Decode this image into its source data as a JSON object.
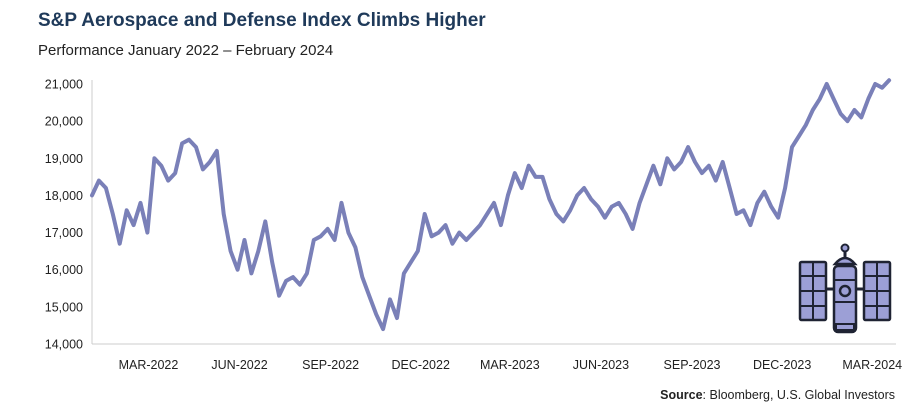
{
  "title": "S&P Aerospace and Defense Index Climbs Higher",
  "subtitle": "Performance January 2022 – February 2024",
  "source_label": "Source",
  "source_text": ": Bloomberg, U.S. Global Investors",
  "icon": "satellite-icon",
  "colors": {
    "line": "#7a80b8",
    "title": "#1f3a5a",
    "icon_fill": "#9c9fd6",
    "icon_stroke": "#1f2333"
  },
  "chart_data": {
    "type": "line",
    "title": "S&P Aerospace and Defense Index Climbs Higher",
    "subtitle": "Performance January 2022 – February 2024",
    "xlabel": "",
    "ylabel": "",
    "ylim": [
      14000,
      21000
    ],
    "yticks": [
      "14,000",
      "15,000",
      "16,000",
      "17,000",
      "18,000",
      "19,000",
      "20,000",
      "21,000"
    ],
    "ytick_values": [
      14000,
      15000,
      16000,
      17000,
      18000,
      19000,
      20000,
      21000
    ],
    "xticks": [
      {
        "label": "MAR-2022",
        "date": "2022-03-01"
      },
      {
        "label": "JUN-2022",
        "date": "2022-06-01"
      },
      {
        "label": "SEP-2022",
        "date": "2022-09-01"
      },
      {
        "label": "DEC-2022",
        "date": "2022-12-01"
      },
      {
        "label": "MAR-2023",
        "date": "2023-03-01"
      },
      {
        "label": "JUN-2023",
        "date": "2023-06-01"
      },
      {
        "label": "SEP-2023",
        "date": "2023-09-01"
      },
      {
        "label": "DEC-2023",
        "date": "2023-12-01"
      },
      {
        "label": "MAR-2024",
        "date": "2024-03-01"
      }
    ],
    "xlim": [
      "2022-01-03",
      "2024-03-25"
    ],
    "grid": false,
    "series": [
      {
        "name": "",
        "points": [
          [
            "2022-01-03",
            18000
          ],
          [
            "2022-01-10",
            18400
          ],
          [
            "2022-01-17",
            18200
          ],
          [
            "2022-01-24",
            17500
          ],
          [
            "2022-01-31",
            16700
          ],
          [
            "2022-02-07",
            17600
          ],
          [
            "2022-02-14",
            17200
          ],
          [
            "2022-02-21",
            17800
          ],
          [
            "2022-02-28",
            17000
          ],
          [
            "2022-03-07",
            19000
          ],
          [
            "2022-03-14",
            18800
          ],
          [
            "2022-03-21",
            18400
          ],
          [
            "2022-03-28",
            18600
          ],
          [
            "2022-04-04",
            19400
          ],
          [
            "2022-04-11",
            19500
          ],
          [
            "2022-04-18",
            19300
          ],
          [
            "2022-04-25",
            18700
          ],
          [
            "2022-05-02",
            18900
          ],
          [
            "2022-05-09",
            19200
          ],
          [
            "2022-05-16",
            17500
          ],
          [
            "2022-05-23",
            16500
          ],
          [
            "2022-05-30",
            16000
          ],
          [
            "2022-06-06",
            16800
          ],
          [
            "2022-06-13",
            15900
          ],
          [
            "2022-06-20",
            16500
          ],
          [
            "2022-06-27",
            17300
          ],
          [
            "2022-07-04",
            16200
          ],
          [
            "2022-07-11",
            15300
          ],
          [
            "2022-07-18",
            15700
          ],
          [
            "2022-07-25",
            15800
          ],
          [
            "2022-08-01",
            15600
          ],
          [
            "2022-08-08",
            15900
          ],
          [
            "2022-08-15",
            16800
          ],
          [
            "2022-08-22",
            16900
          ],
          [
            "2022-08-29",
            17100
          ],
          [
            "2022-09-05",
            16800
          ],
          [
            "2022-09-12",
            17800
          ],
          [
            "2022-09-19",
            17000
          ],
          [
            "2022-09-26",
            16600
          ],
          [
            "2022-10-03",
            15800
          ],
          [
            "2022-10-10",
            15300
          ],
          [
            "2022-10-17",
            14800
          ],
          [
            "2022-10-24",
            14400
          ],
          [
            "2022-10-31",
            15200
          ],
          [
            "2022-11-07",
            14700
          ],
          [
            "2022-11-14",
            15900
          ],
          [
            "2022-11-21",
            16200
          ],
          [
            "2022-11-28",
            16500
          ],
          [
            "2022-12-05",
            17500
          ],
          [
            "2022-12-12",
            16900
          ],
          [
            "2022-12-19",
            17000
          ],
          [
            "2022-12-26",
            17200
          ],
          [
            "2023-01-02",
            16700
          ],
          [
            "2023-01-09",
            17000
          ],
          [
            "2023-01-16",
            16800
          ],
          [
            "2023-01-23",
            17000
          ],
          [
            "2023-01-30",
            17200
          ],
          [
            "2023-02-06",
            17500
          ],
          [
            "2023-02-13",
            17800
          ],
          [
            "2023-02-20",
            17200
          ],
          [
            "2023-02-27",
            18000
          ],
          [
            "2023-03-06",
            18600
          ],
          [
            "2023-03-13",
            18200
          ],
          [
            "2023-03-20",
            18800
          ],
          [
            "2023-03-27",
            18500
          ],
          [
            "2023-04-03",
            18500
          ],
          [
            "2023-04-10",
            17900
          ],
          [
            "2023-04-17",
            17500
          ],
          [
            "2023-04-24",
            17300
          ],
          [
            "2023-05-01",
            17600
          ],
          [
            "2023-05-08",
            18000
          ],
          [
            "2023-05-15",
            18200
          ],
          [
            "2023-05-22",
            17900
          ],
          [
            "2023-05-29",
            17700
          ],
          [
            "2023-06-05",
            17400
          ],
          [
            "2023-06-12",
            17700
          ],
          [
            "2023-06-19",
            17800
          ],
          [
            "2023-06-26",
            17500
          ],
          [
            "2023-07-03",
            17100
          ],
          [
            "2023-07-10",
            17800
          ],
          [
            "2023-07-17",
            18300
          ],
          [
            "2023-07-24",
            18800
          ],
          [
            "2023-07-31",
            18300
          ],
          [
            "2023-08-07",
            19000
          ],
          [
            "2023-08-14",
            18700
          ],
          [
            "2023-08-21",
            18900
          ],
          [
            "2023-08-28",
            19300
          ],
          [
            "2023-09-04",
            18900
          ],
          [
            "2023-09-11",
            18600
          ],
          [
            "2023-09-18",
            18800
          ],
          [
            "2023-09-25",
            18400
          ],
          [
            "2023-10-02",
            18900
          ],
          [
            "2023-10-09",
            18200
          ],
          [
            "2023-10-16",
            17500
          ],
          [
            "2023-10-23",
            17600
          ],
          [
            "2023-10-30",
            17200
          ],
          [
            "2023-11-06",
            17800
          ],
          [
            "2023-11-13",
            18100
          ],
          [
            "2023-11-20",
            17700
          ],
          [
            "2023-11-27",
            17400
          ],
          [
            "2023-12-04",
            18200
          ],
          [
            "2023-12-11",
            19300
          ],
          [
            "2023-12-18",
            19600
          ],
          [
            "2023-12-25",
            19900
          ],
          [
            "2024-01-01",
            20300
          ],
          [
            "2024-01-08",
            20600
          ],
          [
            "2024-01-15",
            21000
          ],
          [
            "2024-01-22",
            20600
          ],
          [
            "2024-01-29",
            20200
          ],
          [
            "2024-02-05",
            20000
          ],
          [
            "2024-02-12",
            20300
          ],
          [
            "2024-02-19",
            20100
          ],
          [
            "2024-02-26",
            20600
          ],
          [
            "2024-03-04",
            21000
          ],
          [
            "2024-03-11",
            20900
          ],
          [
            "2024-03-18",
            21100
          ]
        ]
      }
    ]
  }
}
